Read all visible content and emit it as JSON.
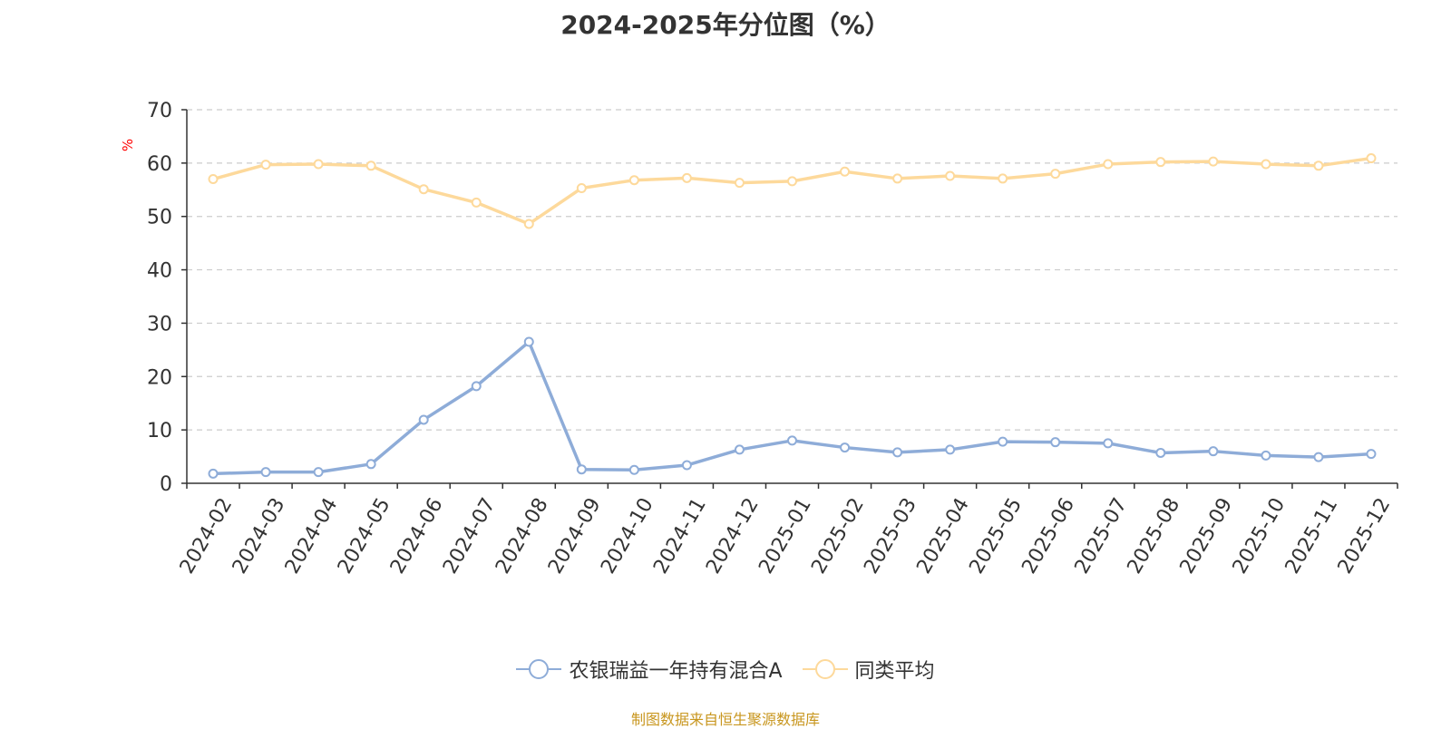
{
  "chart_data": {
    "type": "line",
    "title": "2024-2025年分位图（%）",
    "ylabel": "%",
    "xlabel": "",
    "ylim": [
      0,
      70
    ],
    "yticks": [
      0,
      10,
      20,
      30,
      40,
      50,
      60,
      70
    ],
    "grid": true,
    "legend_position": "bottom",
    "categories": [
      "2024-02",
      "2024-03",
      "2024-04",
      "2024-05",
      "2024-06",
      "2024-07",
      "2024-08",
      "2024-09",
      "2024-10",
      "2024-11",
      "2024-12",
      "2025-01",
      "2025-02",
      "2025-03",
      "2025-04",
      "2025-05",
      "2025-06",
      "2025-07",
      "2025-08",
      "2025-09",
      "2025-10",
      "2025-11",
      "2025-12"
    ],
    "series": [
      {
        "name": "农银瑞益一年持有混合A",
        "color": "#8eacd8",
        "values": [
          1.8,
          2.1,
          2.1,
          3.6,
          11.9,
          18.2,
          26.5,
          2.6,
          2.5,
          3.4,
          6.3,
          8.0,
          6.7,
          5.8,
          6.3,
          7.8,
          7.7,
          7.5,
          5.7,
          6.0,
          5.2,
          4.9,
          5.5
        ]
      },
      {
        "name": "同类平均",
        "color": "#fdd99b",
        "values": [
          57.0,
          59.7,
          59.8,
          59.5,
          55.1,
          52.6,
          48.6,
          55.3,
          56.8,
          57.2,
          56.3,
          56.6,
          58.4,
          57.1,
          57.6,
          57.1,
          58.0,
          59.8,
          60.2,
          60.3,
          59.8,
          59.5,
          60.9
        ]
      }
    ]
  },
  "source_text": "制图数据来自恒生聚源数据库",
  "colors": {
    "axis": "#333333",
    "grid": "#cccccc",
    "ylabel": "#ff0000",
    "source": "#c8961e"
  }
}
